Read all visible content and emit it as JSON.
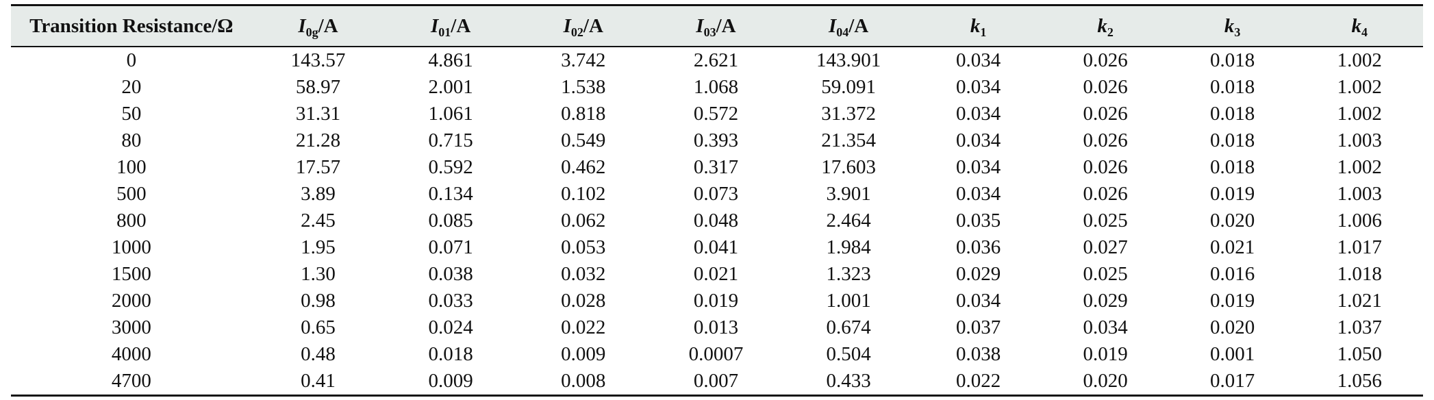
{
  "table": {
    "headers": [
      {
        "symbol": "Transition Resistance/Ω",
        "sub": "",
        "unit": ""
      },
      {
        "symbol": "I",
        "sub": "0g",
        "unit": "/A"
      },
      {
        "symbol": "I",
        "sub": "01",
        "unit": "/A"
      },
      {
        "symbol": "I",
        "sub": "02",
        "unit": "/A"
      },
      {
        "symbol": "I",
        "sub": "03",
        "unit": "/A"
      },
      {
        "symbol": "I",
        "sub": "04",
        "unit": "/A"
      },
      {
        "symbol": "k",
        "sub": "1",
        "unit": ""
      },
      {
        "symbol": "k",
        "sub": "2",
        "unit": ""
      },
      {
        "symbol": "k",
        "sub": "3",
        "unit": ""
      },
      {
        "symbol": "k",
        "sub": "4",
        "unit": ""
      }
    ],
    "rows": [
      [
        "0",
        "143.57",
        "4.861",
        "3.742",
        "2.621",
        "143.901",
        "0.034",
        "0.026",
        "0.018",
        "1.002"
      ],
      [
        "20",
        "58.97",
        "2.001",
        "1.538",
        "1.068",
        "59.091",
        "0.034",
        "0.026",
        "0.018",
        "1.002"
      ],
      [
        "50",
        "31.31",
        "1.061",
        "0.818",
        "0.572",
        "31.372",
        "0.034",
        "0.026",
        "0.018",
        "1.002"
      ],
      [
        "80",
        "21.28",
        "0.715",
        "0.549",
        "0.393",
        "21.354",
        "0.034",
        "0.026",
        "0.018",
        "1.003"
      ],
      [
        "100",
        "17.57",
        "0.592",
        "0.462",
        "0.317",
        "17.603",
        "0.034",
        "0.026",
        "0.018",
        "1.002"
      ],
      [
        "500",
        "3.89",
        "0.134",
        "0.102",
        "0.073",
        "3.901",
        "0.034",
        "0.026",
        "0.019",
        "1.003"
      ],
      [
        "800",
        "2.45",
        "0.085",
        "0.062",
        "0.048",
        "2.464",
        "0.035",
        "0.025",
        "0.020",
        "1.006"
      ],
      [
        "1000",
        "1.95",
        "0.071",
        "0.053",
        "0.041",
        "1.984",
        "0.036",
        "0.027",
        "0.021",
        "1.017"
      ],
      [
        "1500",
        "1.30",
        "0.038",
        "0.032",
        "0.021",
        "1.323",
        "0.029",
        "0.025",
        "0.016",
        "1.018"
      ],
      [
        "2000",
        "0.98",
        "0.033",
        "0.028",
        "0.019",
        "1.001",
        "0.034",
        "0.029",
        "0.019",
        "1.021"
      ],
      [
        "3000",
        "0.65",
        "0.024",
        "0.022",
        "0.013",
        "0.674",
        "0.037",
        "0.034",
        "0.020",
        "1.037"
      ],
      [
        "4000",
        "0.48",
        "0.018",
        "0.009",
        "0.0007",
        "0.504",
        "0.038",
        "0.019",
        "0.001",
        "1.050"
      ],
      [
        "4700",
        "0.41",
        "0.009",
        "0.008",
        "0.007",
        "0.433",
        "0.022",
        "0.020",
        "0.017",
        "1.056"
      ]
    ]
  }
}
